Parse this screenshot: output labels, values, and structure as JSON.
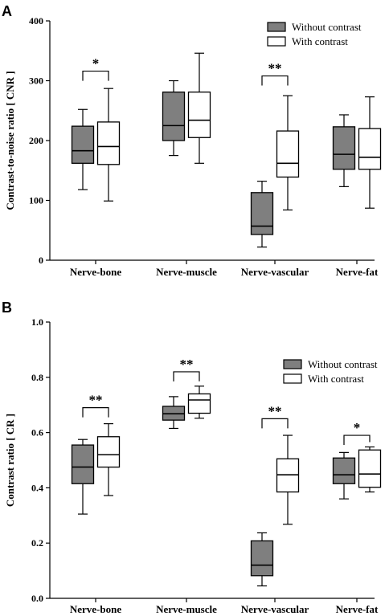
{
  "chart_data": [
    {
      "panel": "A",
      "type": "box",
      "ylabel": "Contrast-to-noise ratio [ CNR ]",
      "ylim": [
        0,
        400
      ],
      "yticks": [
        "0",
        "100",
        "200",
        "300",
        "400"
      ],
      "categories": [
        "Nerve-bone",
        "Nerve-muscle",
        "Nerve-vascular",
        "Nerve-fat"
      ],
      "legend_position": "top-right",
      "series": [
        {
          "name": "Without contrast",
          "color": "#7f7f7f",
          "boxes": [
            {
              "min": 118,
              "q1": 162,
              "median": 183,
              "q3": 224,
              "max": 252
            },
            {
              "min": 175,
              "q1": 200,
              "median": 225,
              "q3": 281,
              "max": 300
            },
            {
              "min": 22,
              "q1": 43,
              "median": 57,
              "q3": 113,
              "max": 132
            },
            {
              "min": 123,
              "q1": 152,
              "median": 177,
              "q3": 223,
              "max": 243
            }
          ]
        },
        {
          "name": "With contrast",
          "color": "#ffffff",
          "boxes": [
            {
              "min": 99,
              "q1": 160,
              "median": 190,
              "q3": 231,
              "max": 287
            },
            {
              "min": 162,
              "q1": 205,
              "median": 234,
              "q3": 281,
              "max": 346
            },
            {
              "min": 84,
              "q1": 139,
              "median": 162,
              "q3": 216,
              "max": 275
            },
            {
              "min": 87,
              "q1": 152,
              "median": 172,
              "q3": 220,
              "max": 273
            }
          ]
        }
      ],
      "significance": [
        {
          "category_index": 0,
          "label": "*",
          "y": 316
        },
        {
          "category_index": 2,
          "label": "**",
          "y": 308
        }
      ]
    },
    {
      "panel": "B",
      "type": "box",
      "ylabel": "Contrast ratio [ CR ]",
      "ylim": [
        0,
        1.0
      ],
      "yticks": [
        "0.0",
        "0.2",
        "0.4",
        "0.6",
        "0.8",
        "1.0"
      ],
      "categories": [
        "Nerve-bone",
        "Nerve-muscle",
        "Nerve-vascular",
        "Nerve-fat"
      ],
      "legend_position": "top-right",
      "series": [
        {
          "name": "Without contrast",
          "color": "#7f7f7f",
          "boxes": [
            {
              "min": 0.305,
              "q1": 0.415,
              "median": 0.475,
              "q3": 0.555,
              "max": 0.575
            },
            {
              "min": 0.615,
              "q1": 0.645,
              "median": 0.668,
              "q3": 0.695,
              "max": 0.73
            },
            {
              "min": 0.045,
              "q1": 0.082,
              "median": 0.12,
              "q3": 0.208,
              "max": 0.237
            },
            {
              "min": 0.36,
              "q1": 0.415,
              "median": 0.447,
              "q3": 0.508,
              "max": 0.528
            }
          ]
        },
        {
          "name": "With contrast",
          "color": "#ffffff",
          "boxes": [
            {
              "min": 0.372,
              "q1": 0.475,
              "median": 0.52,
              "q3": 0.585,
              "max": 0.632
            },
            {
              "min": 0.652,
              "q1": 0.67,
              "median": 0.718,
              "q3": 0.74,
              "max": 0.768
            },
            {
              "min": 0.268,
              "q1": 0.385,
              "median": 0.447,
              "q3": 0.505,
              "max": 0.59
            },
            {
              "min": 0.385,
              "q1": 0.402,
              "median": 0.45,
              "q3": 0.537,
              "max": 0.548
            }
          ]
        }
      ],
      "significance": [
        {
          "category_index": 0,
          "label": "**",
          "y": 0.69
        },
        {
          "category_index": 1,
          "label": "**",
          "y": 0.82
        },
        {
          "category_index": 2,
          "label": "**",
          "y": 0.65
        },
        {
          "category_index": 3,
          "label": "*",
          "y": 0.59
        }
      ]
    }
  ]
}
